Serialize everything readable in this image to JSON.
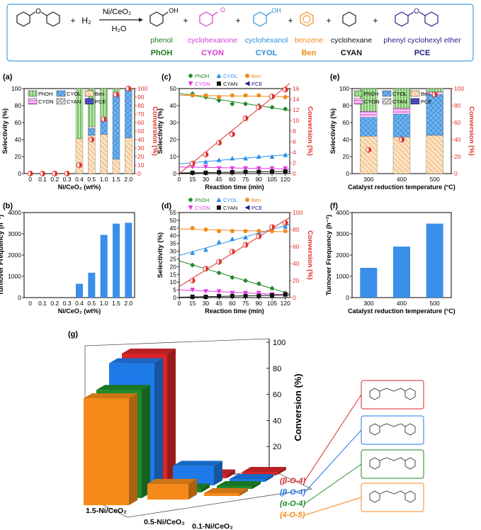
{
  "scheme": {
    "catalyst": "Ni/CeO₂",
    "h2": "H₂",
    "h2o": "H₂O",
    "plus": "+",
    "compounds": [
      {
        "name": "phenol",
        "abbr": "PhOH",
        "color": "#1a7a1a"
      },
      {
        "name": "cyclohexanone",
        "abbr": "CYON",
        "color": "#d63bd6"
      },
      {
        "name": "cyclohexanol",
        "abbr": "CYOL",
        "color": "#2b8fd8"
      },
      {
        "name": "benzene",
        "abbr": "Ben",
        "color": "#f08a1c"
      },
      {
        "name": "cyclohexane",
        "abbr": "CYAN",
        "color": "#111111"
      },
      {
        "name": "phenyl cyclohexyl ether",
        "abbr": "PCE",
        "color": "#20208a"
      }
    ],
    "oh": "OH",
    "o": "O"
  },
  "colors": {
    "phoh": "#8fd07a",
    "cyon": "#f08cf0",
    "cyol": "#3a8fe8",
    "ben": "#f4b46a",
    "cyan": "#999999",
    "pce": "#2020a0",
    "conversion": "#e0302a",
    "frame": "#4a9fd8",
    "green3d": "#1f8a2a",
    "blue3d": "#1e7ae8",
    "red3d": "#d8262a",
    "orange3d": "#f58a1a"
  },
  "chart_data": [
    {
      "panel": "(a)",
      "type": "bar",
      "categories": [
        "0",
        "0.1",
        "0.2",
        "0.3",
        "0.4",
        "0.5",
        "1.0",
        "1.5",
        "2.0"
      ],
      "xlabel": "Ni/CeO₂ (wt%)",
      "ylabel": "Selectivity (%)",
      "y2label": "Conversion (%)",
      "ylim": [
        0,
        100
      ],
      "y2lim": [
        0,
        100
      ],
      "yticks": [
        "0",
        "20",
        "40",
        "60",
        "80",
        "100"
      ],
      "y2ticks": [
        "0",
        "10",
        "20",
        "30",
        "40",
        "50",
        "60",
        "70",
        "80",
        "90",
        "100"
      ],
      "legend": [
        "PhOH",
        "CYOL",
        "Ben",
        "CYON",
        "CYAN",
        "PCE"
      ],
      "series": [
        {
          "name": "Ben",
          "values": [
            0,
            0,
            0,
            0,
            41,
            45,
            46,
            17,
            42
          ]
        },
        {
          "name": "CYOL",
          "values": [
            0,
            0,
            0,
            0,
            0,
            8,
            16,
            74,
            56
          ]
        },
        {
          "name": "CYON",
          "values": [
            0,
            0,
            0,
            0,
            0,
            2,
            2,
            4,
            1
          ]
        },
        {
          "name": "PhOH",
          "values": [
            0,
            0,
            0,
            0,
            59,
            45,
            36,
            5,
            1
          ]
        }
      ],
      "conversion": [
        0,
        0,
        0,
        0,
        10,
        40,
        64,
        93,
        100
      ]
    },
    {
      "panel": "(b)",
      "type": "bar",
      "categories": [
        "0",
        "0.1",
        "0.2",
        "0.3",
        "0.4",
        "0.5",
        "1.0",
        "1.5",
        "2.0"
      ],
      "xlabel": "Ni/CeO₂ (wt%)",
      "ylabel": "Turnover Frequency (h⁻¹)",
      "ylim": [
        0,
        4000
      ],
      "yticks": [
        "0",
        "1000",
        "2000",
        "3000",
        "4000"
      ],
      "values": [
        0,
        0,
        0,
        0,
        650,
        1170,
        2950,
        3480,
        3520
      ]
    },
    {
      "panel": "(c)",
      "type": "line",
      "x": [
        15,
        30,
        45,
        60,
        75,
        90,
        105,
        120
      ],
      "xticks": [
        "0",
        "15",
        "30",
        "45",
        "60",
        "75",
        "90",
        "105",
        "120"
      ],
      "xlabel": "Reaction time (min)",
      "ylabel": "Selectivity (%)",
      "y2label": "Conversion (%)",
      "ylim": [
        0,
        50
      ],
      "y2lim": [
        0,
        16
      ],
      "yticks": [
        "0",
        "10",
        "20",
        "30",
        "40",
        "50"
      ],
      "y2ticks": [
        "0",
        "2",
        "4",
        "6",
        "8",
        "10",
        "12",
        "14",
        "16"
      ],
      "legend": [
        "PhOH",
        "CYOL",
        "Ben",
        "CYON",
        "CYAN",
        "PCE"
      ],
      "series": [
        {
          "name": "PhOH",
          "values": [
            47,
            45,
            43,
            41,
            41,
            40,
            39,
            38
          ]
        },
        {
          "name": "CYOL",
          "values": [
            6,
            7,
            8,
            9,
            9,
            10,
            10,
            11
          ]
        },
        {
          "name": "Ben",
          "values": [
            46,
            46,
            45,
            46,
            46,
            46,
            45,
            45
          ]
        },
        {
          "name": "CYON",
          "values": [
            4,
            4,
            3,
            3,
            3,
            3,
            3,
            3
          ]
        },
        {
          "name": "CYAN",
          "values": [
            0.5,
            0.5,
            0.8,
            0.8,
            1,
            1,
            1.2,
            1.2
          ]
        }
      ],
      "conversion": [
        1.9,
        3.6,
        5.8,
        7.4,
        10.4,
        12.5,
        14.5,
        15.8
      ]
    },
    {
      "panel": "(d)",
      "type": "line",
      "x": [
        15,
        30,
        45,
        60,
        75,
        90,
        105,
        120
      ],
      "xticks": [
        "0",
        "15",
        "30",
        "45",
        "60",
        "75",
        "90",
        "105",
        "120"
      ],
      "xlabel": "Reaction time (min)",
      "ylabel": "Selectivity (%)",
      "y2label": "Conversion (%)",
      "ylim": [
        0,
        55
      ],
      "y2lim": [
        0,
        100
      ],
      "yticks": [
        "0",
        "5",
        "10",
        "15",
        "20",
        "25",
        "30",
        "35",
        "40",
        "45",
        "50",
        "55"
      ],
      "y2ticks": [
        "0",
        "20",
        "40",
        "60",
        "80",
        "100"
      ],
      "legend": [
        "PhOH",
        "CYOL",
        "Ben",
        "CYON",
        "CYAN",
        "PCE"
      ],
      "series": [
        {
          "name": "PhOH",
          "values": [
            21,
            19,
            16,
            13,
            11,
            9,
            6,
            3
          ]
        },
        {
          "name": "CYOL",
          "values": [
            29,
            31,
            36,
            38,
            39,
            42,
            44,
            46
          ]
        },
        {
          "name": "Ben",
          "values": [
            45,
            44,
            43,
            43,
            43,
            43,
            43,
            43
          ]
        },
        {
          "name": "CYON",
          "values": [
            5,
            4,
            4,
            3,
            3,
            3,
            2,
            2
          ]
        },
        {
          "name": "CYAN",
          "values": [
            0.5,
            0.5,
            1,
            1,
            1,
            1,
            1.5,
            2
          ]
        }
      ],
      "conversion": [
        20,
        34,
        42,
        54,
        62,
        72,
        83,
        88
      ]
    },
    {
      "panel": "(e)",
      "type": "bar",
      "categories": [
        "300",
        "400",
        "500"
      ],
      "xlabel": "Catalyst reduction temperature (°C)",
      "ylabel": "Selectivity (%)",
      "y2label": "Conversion (%)",
      "ylim": [
        0,
        100
      ],
      "y2lim": [
        0,
        100
      ],
      "yticks": [
        "0",
        "20",
        "40",
        "60",
        "80",
        "100"
      ],
      "y2ticks": [
        "0",
        "20",
        "40",
        "60",
        "80",
        "100"
      ],
      "legend": [
        "PhOH",
        "CYOL",
        "Ben",
        "CYON",
        "CYAN",
        "PCE"
      ],
      "series": [
        {
          "name": "Ben",
          "values": [
            44,
            43,
            45
          ]
        },
        {
          "name": "CYOL",
          "values": [
            22,
            27,
            48
          ]
        },
        {
          "name": "CYON",
          "values": [
            7,
            7,
            3
          ]
        },
        {
          "name": "PhOH",
          "values": [
            27,
            23,
            4
          ]
        }
      ],
      "conversion": [
        28,
        40,
        93
      ]
    },
    {
      "panel": "(f)",
      "type": "bar",
      "categories": [
        "300",
        "400",
        "500"
      ],
      "xlabel": "Catalyst reduction temperature (°C)",
      "ylabel": "Turnover Frequency (h⁻¹)",
      "ylim": [
        0,
        4000
      ],
      "yticks": [
        "0",
        "1000",
        "2000",
        "3000",
        "4000"
      ],
      "values": [
        1400,
        2400,
        3480
      ]
    },
    {
      "panel": "(g)",
      "type": "bar",
      "categories": [
        "1.5-Ni/CeO₂",
        "0.5-Ni/CeO₂",
        "0.1-Ni/CeO₂"
      ],
      "zlabel": "Conversion (%)",
      "zlim": [
        0,
        100
      ],
      "zticks": [
        "0",
        "20",
        "40",
        "60",
        "80",
        "100"
      ],
      "series": [
        {
          "name": "(4-O-5)",
          "values": [
            82,
            12,
            2
          ]
        },
        {
          "name": "(α-O-4)",
          "values": [
            83,
            3,
            2
          ]
        },
        {
          "name": "(β-O-4)",
          "values": [
            98,
            15,
            2
          ]
        },
        {
          "name": "(β-O-4)",
          "values": [
            100,
            3,
            2
          ]
        }
      ],
      "series_colors": [
        "#f58a1a",
        "#1f8a2a",
        "#1e7ae8",
        "#d8262a"
      ]
    }
  ]
}
